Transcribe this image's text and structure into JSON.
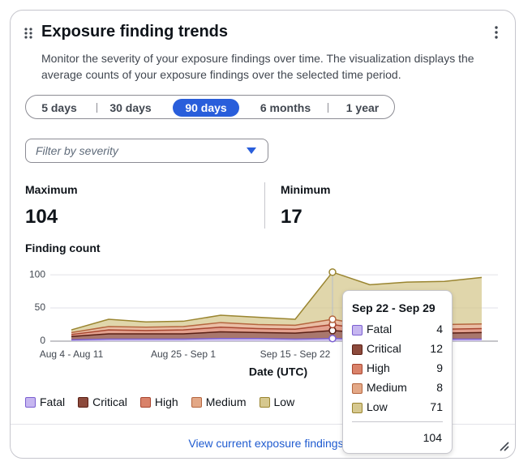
{
  "header": {
    "title": "Exposure finding trends",
    "description": "Monitor the severity of your exposure findings over time. The visualization displays the average counts of your exposure findings over the selected time period."
  },
  "time_range": {
    "options": [
      "5 days",
      "30 days",
      "90 days",
      "6 months",
      "1 year"
    ],
    "selected": 2
  },
  "filter": {
    "placeholder": "Filter by severity"
  },
  "stats": [
    {
      "label": "Maximum",
      "value": 104
    },
    {
      "label": "Minimum",
      "value": 17
    }
  ],
  "chart_data": {
    "type": "area",
    "stacked": true,
    "title": "Finding count",
    "x_title": "Date (UTC)",
    "categories": [
      "Aug 4 - Aug 11",
      null,
      null,
      "Aug 25 - Sep 1",
      null,
      null,
      "Sep 15 - Sep 22",
      "Sep 22 - Sep 29",
      null,
      null,
      null,
      null
    ],
    "series": [
      {
        "name": "Fatal",
        "color": "#c6b6f0",
        "line_color": "#7b5fd1",
        "values": [
          2,
          3,
          3,
          3,
          4,
          4,
          3,
          4,
          3,
          3,
          3,
          3
        ]
      },
      {
        "name": "Critical",
        "color": "#8c4a3c",
        "line_color": "#5a1f14",
        "values": [
          5,
          8,
          8,
          8,
          10,
          9,
          9,
          12,
          9,
          9,
          9,
          10
        ]
      },
      {
        "name": "High",
        "color": "#d9826a",
        "line_color": "#a84630",
        "values": [
          3,
          6,
          5,
          6,
          7,
          6,
          6,
          9,
          5,
          6,
          6,
          6
        ]
      },
      {
        "name": "Medium",
        "color": "#e3a887",
        "line_color": "#b5663f",
        "values": [
          3,
          5,
          5,
          5,
          7,
          6,
          6,
          8,
          6,
          6,
          7,
          7
        ]
      },
      {
        "name": "Low",
        "color": "#d6c88f",
        "line_color": "#9a8530",
        "values": [
          4,
          11,
          8,
          8,
          11,
          11,
          9,
          71,
          62,
          65,
          65,
          70
        ]
      }
    ],
    "ylim": [
      0,
      105
    ],
    "yticks": [
      0,
      50,
      100
    ],
    "grid": true
  },
  "tooltip": {
    "category_index": 7,
    "total": 104
  },
  "footer": {
    "link": "View current exposure findings"
  }
}
